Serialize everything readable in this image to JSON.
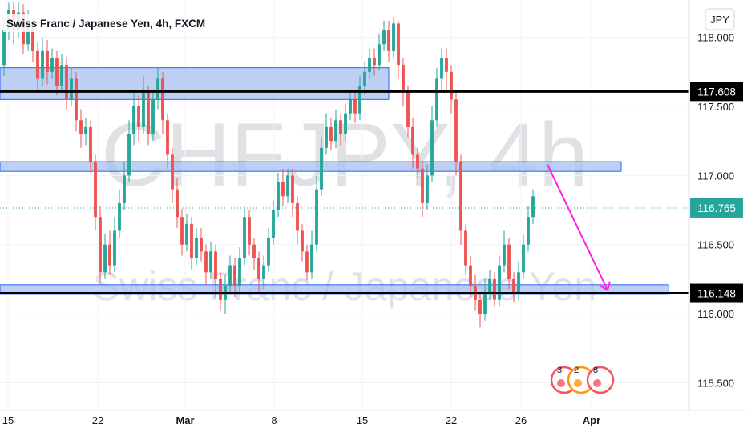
{
  "header": {
    "title": "Swiss Franc / Japanese Yen, 4h, FXCM",
    "currency_button": "JPY"
  },
  "watermark": {
    "symbol": "CHFJPY, 4h",
    "name": "Swiss Franc / Japanese Yen"
  },
  "colors": {
    "up": "#26a69a",
    "down": "#ef5350",
    "zone_fill": "#a7c0f0",
    "zone_stroke": "#2962ff",
    "arrow": "#ff1ee5",
    "line": "#000000",
    "last_price_bg": "#26a69a"
  },
  "chart_data": {
    "type": "candlestick",
    "title": "Swiss Franc / Japanese Yen, 4h, FXCM",
    "ylim": [
      115.3,
      118.27
    ],
    "y_ticks": [
      118.0,
      117.5,
      117.0,
      116.5,
      116.0,
      115.5
    ],
    "y_tick_labels": [
      "118.000",
      "117.500",
      "117.000",
      "116.500",
      "116.000",
      "115.500"
    ],
    "x_tick_labels": [
      "15",
      "22",
      "Mar",
      "8",
      "15",
      "22",
      "26",
      "Apr"
    ],
    "price_labels": [
      {
        "value": 117.608,
        "label": "117.608",
        "style": "line"
      },
      {
        "value": 116.765,
        "label": "116.765",
        "style": "last"
      },
      {
        "value": 116.148,
        "label": "116.148",
        "style": "line"
      }
    ],
    "horizontal_lines": [
      117.608,
      116.148
    ],
    "zones": [
      {
        "from": 117.55,
        "to": 117.78
      },
      {
        "from": 117.03,
        "to": 117.1
      },
      {
        "from": 116.14,
        "to": 116.21
      }
    ],
    "arrow": {
      "from_value": 117.08,
      "to_value": 116.17
    },
    "events_badge_numbers": [
      "3",
      "2",
      "8"
    ],
    "candles": [
      [
        117.8,
        118.05,
        117.72,
        118.15
      ],
      [
        118.05,
        118.2,
        117.98,
        118.25
      ],
      [
        118.2,
        118.05,
        117.95,
        118.26
      ],
      [
        118.05,
        118.18,
        118.0,
        118.26
      ],
      [
        118.18,
        117.95,
        117.88,
        118.24
      ],
      [
        117.95,
        118.1,
        117.9,
        118.2
      ],
      [
        118.1,
        117.9,
        117.82,
        118.15
      ],
      [
        117.9,
        117.7,
        117.62,
        117.96
      ],
      [
        117.7,
        117.9,
        117.65,
        118.0
      ],
      [
        117.9,
        117.75,
        117.66,
        117.98
      ],
      [
        117.75,
        117.85,
        117.7,
        117.92
      ],
      [
        117.85,
        117.65,
        117.58,
        117.9
      ],
      [
        117.65,
        117.8,
        117.6,
        117.88
      ],
      [
        117.8,
        117.55,
        117.48,
        117.86
      ],
      [
        117.55,
        117.7,
        117.5,
        117.78
      ],
      [
        117.7,
        117.4,
        117.32,
        117.75
      ],
      [
        117.4,
        117.3,
        117.2,
        117.48
      ],
      [
        117.3,
        117.35,
        117.22,
        117.42
      ],
      [
        117.35,
        117.1,
        117.02,
        117.4
      ],
      [
        117.1,
        116.7,
        116.6,
        117.15
      ],
      [
        116.7,
        116.3,
        116.22,
        116.78
      ],
      [
        116.3,
        116.5,
        116.25,
        116.58
      ],
      [
        116.5,
        116.35,
        116.28,
        116.6
      ],
      [
        116.35,
        116.6,
        116.3,
        116.7
      ],
      [
        116.6,
        116.8,
        116.55,
        116.9
      ],
      [
        116.8,
        117.0,
        116.75,
        117.1
      ],
      [
        117.0,
        117.3,
        116.95,
        117.4
      ],
      [
        117.3,
        117.5,
        117.22,
        117.6
      ],
      [
        117.5,
        117.35,
        117.25,
        117.58
      ],
      [
        117.35,
        117.6,
        117.3,
        117.72
      ],
      [
        117.6,
        117.3,
        117.22,
        117.65
      ],
      [
        117.3,
        117.55,
        117.25,
        117.62
      ],
      [
        117.55,
        117.7,
        117.48,
        117.78
      ],
      [
        117.7,
        117.4,
        117.3,
        117.75
      ],
      [
        117.4,
        117.15,
        117.05,
        117.45
      ],
      [
        117.15,
        116.9,
        116.8,
        117.2
      ],
      [
        116.9,
        116.7,
        116.62,
        116.98
      ],
      [
        116.7,
        116.5,
        116.42,
        116.76
      ],
      [
        116.5,
        116.65,
        116.45,
        116.72
      ],
      [
        116.65,
        116.4,
        116.32,
        116.7
      ],
      [
        116.4,
        116.55,
        116.35,
        116.62
      ],
      [
        116.55,
        116.45,
        116.38,
        116.62
      ],
      [
        116.45,
        116.3,
        116.2,
        116.5
      ],
      [
        116.3,
        116.45,
        116.25,
        116.52
      ],
      [
        116.45,
        116.25,
        116.12,
        116.5
      ],
      [
        116.25,
        116.1,
        116.02,
        116.3
      ],
      [
        116.1,
        116.2,
        116.0,
        116.28
      ],
      [
        116.2,
        116.35,
        116.15,
        116.42
      ],
      [
        116.35,
        116.2,
        116.12,
        116.4
      ],
      [
        116.2,
        116.4,
        116.15,
        116.48
      ],
      [
        116.4,
        116.7,
        116.35,
        116.78
      ],
      [
        116.7,
        116.5,
        116.42,
        116.75
      ],
      [
        116.5,
        116.4,
        116.32,
        116.55
      ],
      [
        116.4,
        116.25,
        116.15,
        116.45
      ],
      [
        116.25,
        116.35,
        116.18,
        116.42
      ],
      [
        116.35,
        116.55,
        116.3,
        116.62
      ],
      [
        116.55,
        116.75,
        116.5,
        116.82
      ],
      [
        116.75,
        116.95,
        116.7,
        117.02
      ],
      [
        116.95,
        116.85,
        116.78,
        117.05
      ],
      [
        116.85,
        117.0,
        116.8,
        117.05
      ],
      [
        117.0,
        116.8,
        116.7,
        117.05
      ],
      [
        116.8,
        116.6,
        116.5,
        116.85
      ],
      [
        116.6,
        116.45,
        116.38,
        116.65
      ],
      [
        116.45,
        116.3,
        116.24,
        116.5
      ],
      [
        116.3,
        116.5,
        116.25,
        116.6
      ],
      [
        116.5,
        116.9,
        116.45,
        117.0
      ],
      [
        116.9,
        117.2,
        116.85,
        117.28
      ],
      [
        117.2,
        117.35,
        117.15,
        117.45
      ],
      [
        117.35,
        117.25,
        117.18,
        117.42
      ],
      [
        117.25,
        117.4,
        117.2,
        117.48
      ],
      [
        117.4,
        117.3,
        117.22,
        117.45
      ],
      [
        117.3,
        117.45,
        117.25,
        117.52
      ],
      [
        117.45,
        117.55,
        117.4,
        117.62
      ],
      [
        117.55,
        117.45,
        117.38,
        117.6
      ],
      [
        117.45,
        117.65,
        117.4,
        117.72
      ],
      [
        117.65,
        117.75,
        117.58,
        117.82
      ],
      [
        117.75,
        117.85,
        117.7,
        117.92
      ],
      [
        117.85,
        117.8,
        117.72,
        117.92
      ],
      [
        117.8,
        117.95,
        117.76,
        118.02
      ],
      [
        117.95,
        118.05,
        117.9,
        118.12
      ],
      [
        118.05,
        117.9,
        117.82,
        118.12
      ],
      [
        117.9,
        118.1,
        117.85,
        118.15
      ],
      [
        118.1,
        117.8,
        117.7,
        118.12
      ],
      [
        117.8,
        117.6,
        117.5,
        117.85
      ],
      [
        117.6,
        117.35,
        117.28,
        117.65
      ],
      [
        117.35,
        117.15,
        117.05,
        117.42
      ],
      [
        117.15,
        117.05,
        116.98,
        117.2
      ],
      [
        117.05,
        116.8,
        116.7,
        117.1
      ],
      [
        116.8,
        117.0,
        116.75,
        117.08
      ],
      [
        117.0,
        117.4,
        116.95,
        117.5
      ],
      [
        117.4,
        117.7,
        117.35,
        117.78
      ],
      [
        117.7,
        117.85,
        117.62,
        117.92
      ],
      [
        117.85,
        117.75,
        117.62,
        117.92
      ],
      [
        117.75,
        117.55,
        117.45,
        117.8
      ],
      [
        117.55,
        117.1,
        117.0,
        117.6
      ],
      [
        117.1,
        116.6,
        116.5,
        117.15
      ],
      [
        116.6,
        116.35,
        116.28,
        116.65
      ],
      [
        116.35,
        116.2,
        116.12,
        116.42
      ],
      [
        116.2,
        116.1,
        116.02,
        116.28
      ],
      [
        116.1,
        116.0,
        115.9,
        116.15
      ],
      [
        116.0,
        116.15,
        115.95,
        116.25
      ],
      [
        116.15,
        116.25,
        116.1,
        116.32
      ],
      [
        116.25,
        116.1,
        116.05,
        116.3
      ],
      [
        116.1,
        116.35,
        116.05,
        116.42
      ],
      [
        116.35,
        116.5,
        116.3,
        116.6
      ],
      [
        116.5,
        116.25,
        116.18,
        116.55
      ],
      [
        116.25,
        116.15,
        116.08,
        116.3
      ],
      [
        116.15,
        116.3,
        116.1,
        116.38
      ],
      [
        116.3,
        116.5,
        116.25,
        116.58
      ],
      [
        116.5,
        116.7,
        116.45,
        116.78
      ],
      [
        116.7,
        116.85,
        116.65,
        116.9
      ]
    ]
  }
}
